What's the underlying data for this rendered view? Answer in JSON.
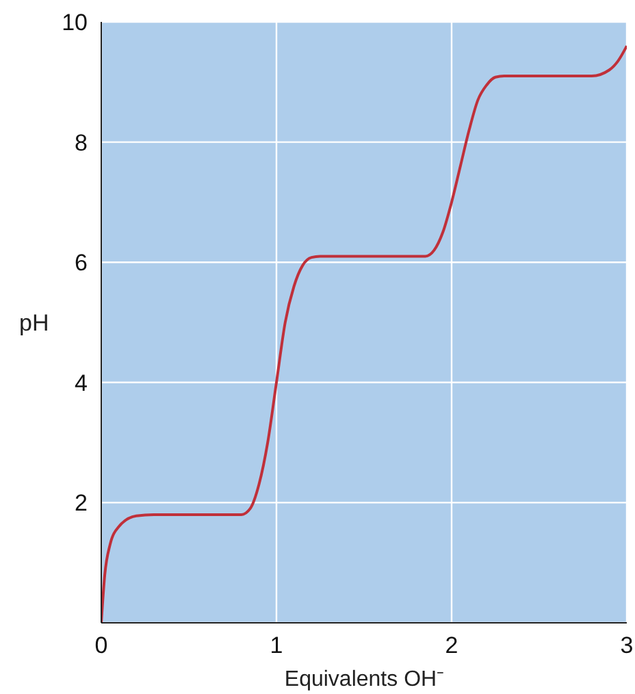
{
  "chart_data": {
    "type": "line",
    "xlabel": "Equivalents OH⁻",
    "ylabel": "pH",
    "x": [
      0,
      0.02,
      0.05,
      0.1,
      0.2,
      0.3,
      0.8,
      0.85,
      0.9,
      0.95,
      1.0,
      1.05,
      1.1,
      1.15,
      1.2,
      1.25,
      1.85,
      1.9,
      1.95,
      2.0,
      2.05,
      2.1,
      2.15,
      2.2,
      2.25,
      2.3,
      2.8,
      2.9,
      2.95,
      3.0
    ],
    "series": [
      {
        "color": "#c0303a",
        "values": [
          0,
          0.8,
          1.3,
          1.6,
          1.78,
          1.8,
          1.8,
          1.9,
          2.3,
          3.0,
          4.0,
          5.0,
          5.6,
          5.95,
          6.08,
          6.1,
          6.1,
          6.2,
          6.5,
          7.0,
          7.6,
          8.2,
          8.7,
          8.95,
          9.08,
          9.1,
          9.1,
          9.2,
          9.35,
          9.6
        ]
      }
    ],
    "xlim": [
      0,
      3
    ],
    "xticks": [
      0,
      1,
      2,
      3
    ],
    "ylim": [
      0,
      10
    ],
    "yticks": [
      {
        "value": 0,
        "label": null
      },
      2,
      4,
      6,
      8,
      10
    ],
    "grid": true,
    "marker": "none",
    "line_style": "solid"
  }
}
